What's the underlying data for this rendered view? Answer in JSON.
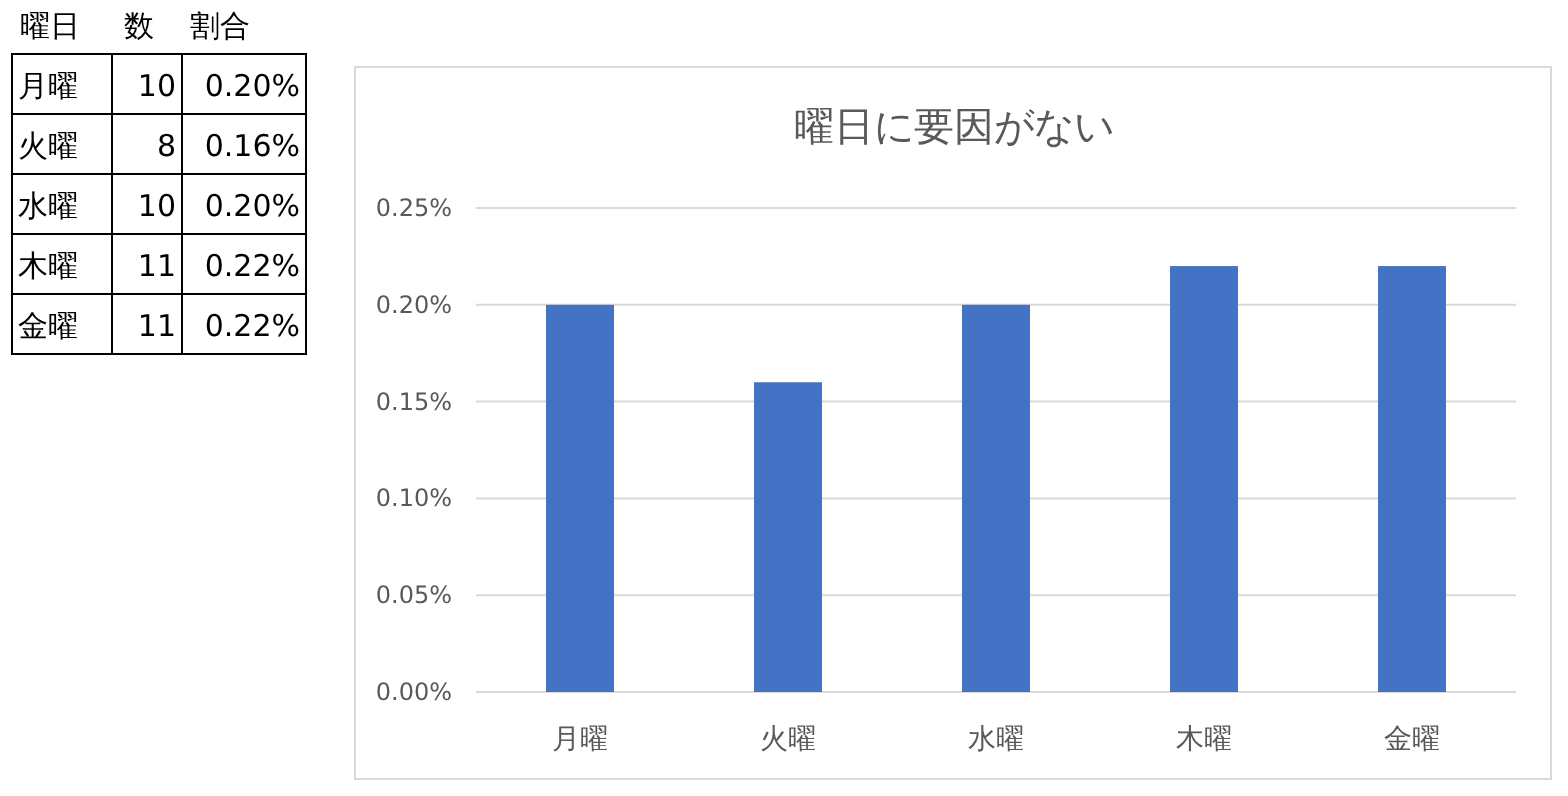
{
  "chart_data": [
    {
      "type": "other",
      "data_labels": true,
      "legend_title": "曜日",
      "categories": [
        "月曜",
        "火曜",
        "水曜",
        "木曜",
        "金曜"
      ],
      "series": [
        {
          "name": "数",
          "values": [
            10,
            8,
            10,
            11,
            11
          ]
        },
        {
          "name": "割合",
          "values": [
            0.2,
            0.16,
            0.2,
            0.22,
            0.22
          ],
          "value_labels": [
            "0.20%",
            "0.16%",
            "0.20%",
            "0.22%",
            "0.22%"
          ]
        }
      ]
    },
    {
      "type": "bar",
      "title": "曜日に要因がない",
      "categories": [
        "月曜",
        "火曜",
        "水曜",
        "木曜",
        "金曜"
      ],
      "values": [
        0.2,
        0.16,
        0.2,
        0.22,
        0.22
      ],
      "color": "#4472c4",
      "ylim": [
        0,
        0.25
      ],
      "yticks": [
        {
          "value": 0,
          "label": "0.00%"
        },
        {
          "value": 0.05,
          "label": "0.05%"
        },
        {
          "value": 0.1,
          "label": "0.10%"
        },
        {
          "value": 0.15,
          "label": "0.15%"
        },
        {
          "value": 0.2,
          "label": "0.20%"
        },
        {
          "value": 0.25,
          "label": "0.25%"
        }
      ],
      "grid": "y"
    }
  ]
}
